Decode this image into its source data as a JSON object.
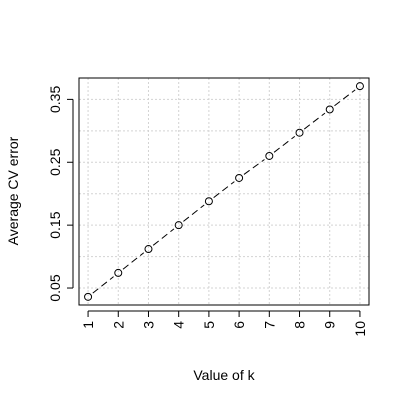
{
  "chart_data": {
    "type": "line",
    "title": "",
    "xlabel": "Value of k",
    "ylabel": "Average CV error",
    "x": [
      1,
      2,
      3,
      4,
      5,
      6,
      7,
      8,
      9,
      10
    ],
    "series": [
      {
        "values": [
          0.036,
          0.074,
          0.112,
          0.15,
          0.188,
          0.225,
          0.26,
          0.297,
          0.334,
          0.371
        ]
      }
    ],
    "xlim": [
      0.7,
      10.3
    ],
    "ylim": [
      0.023,
      0.384
    ],
    "xticks": [
      "1",
      "2",
      "3",
      "4",
      "5",
      "6",
      "7",
      "8",
      "9",
      "10"
    ],
    "yticks": [
      "0.05",
      "0.15",
      "0.25",
      "0.35"
    ],
    "grid": true,
    "line_style": "dashed",
    "marker": "open-circle",
    "colors": {
      "line": "#000000",
      "grid": "#d3d3d3",
      "axis": "#000000"
    }
  }
}
